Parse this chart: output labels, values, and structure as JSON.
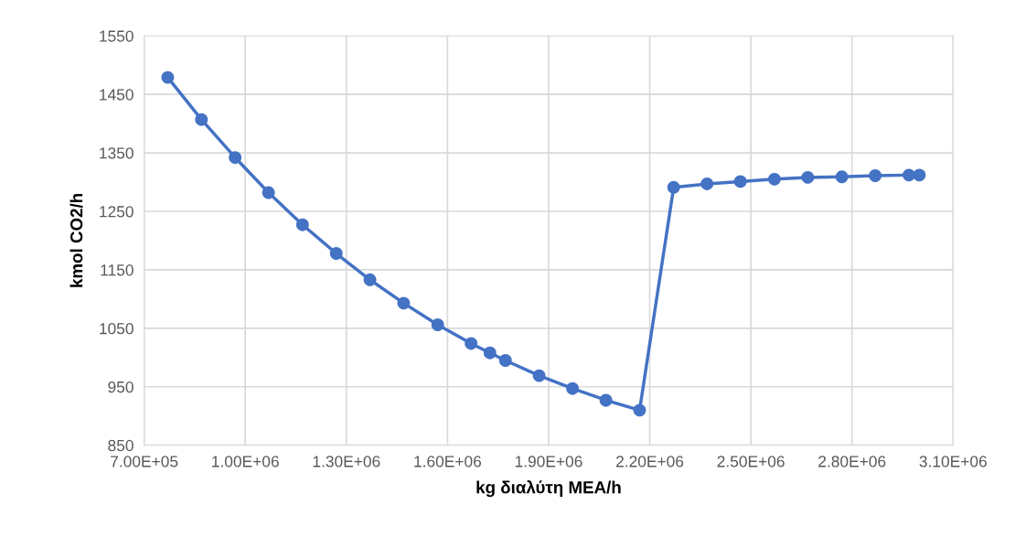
{
  "chart_data": {
    "type": "line",
    "xlabel": "kg διαλύτη MEA/h",
    "ylabel": "kmol CO2/h",
    "x": [
      770000,
      870000,
      970000,
      1069000,
      1170000,
      1270000,
      1370000,
      1470000,
      1571000,
      1670000,
      1726000,
      1772000,
      1872000,
      1971000,
      2070000,
      2170000,
      2271000,
      2370000,
      2469000,
      2570000,
      2669000,
      2770000,
      2869000,
      2969000,
      3000000
    ],
    "series": [
      {
        "color": "#4472c4",
        "values": [
          1479,
          1407,
          1342,
          1282,
          1227,
          1178,
          1133,
          1093,
          1056,
          1024,
          1008,
          995,
          969,
          947,
          927,
          910,
          1291,
          1297,
          1301,
          1305,
          1308,
          1309,
          1311,
          1312,
          1312
        ]
      }
    ],
    "xlim": [
      700000,
      3100000
    ],
    "xticks": [
      {
        "value": 700000,
        "label": "7.00E+05"
      },
      {
        "value": 1000000,
        "label": "1.00E+06"
      },
      {
        "value": 1300000,
        "label": "1.30E+06"
      },
      {
        "value": 1600000,
        "label": "1.60E+06"
      },
      {
        "value": 1900000,
        "label": "1.90E+06"
      },
      {
        "value": 2200000,
        "label": "2.20E+06"
      },
      {
        "value": 2500000,
        "label": "2.50E+06"
      },
      {
        "value": 2800000,
        "label": "2.80E+06"
      },
      {
        "value": 3100000,
        "label": "3.10E+06"
      }
    ],
    "ylim": [
      850,
      1550
    ],
    "yticks": [
      850,
      950,
      1050,
      1150,
      1250,
      1350,
      1450,
      1550
    ],
    "grid": true,
    "marker": "circle",
    "line_style": "solid"
  }
}
